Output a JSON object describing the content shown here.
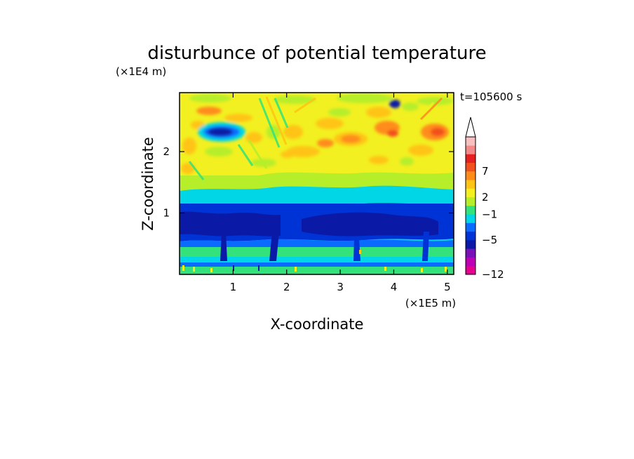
{
  "chart_data": {
    "type": "heatmap",
    "title": "disturbunce of potential temperature",
    "xlabel": "X-coordinate",
    "ylabel": "Z-coordinate",
    "x_unit": "(×1E5 m)",
    "y_unit": "(×1E4 m)",
    "time_label": "t=105600 s",
    "x_ticks": [
      "1",
      "2",
      "3",
      "4",
      "5"
    ],
    "x_tick_values": [
      1,
      2,
      3,
      4,
      5
    ],
    "y_ticks": [
      "1",
      "2"
    ],
    "y_tick_values": [
      1,
      2
    ],
    "xlim": [
      0,
      5.12
    ],
    "ylim": [
      0,
      2.96
    ],
    "colorbar": {
      "labels": [
        "−12",
        "−5",
        "−1",
        "2",
        "7"
      ],
      "colors": [
        "#e5008f",
        "#be00b4",
        "#7a10b8",
        "#0a1aa6",
        "#0033d6",
        "#0a6cff",
        "#00d6e6",
        "#33e27a",
        "#b6ee2a",
        "#f2f021",
        "#ffc414",
        "#ff8c1a",
        "#f2501e",
        "#e62020",
        "#f28a8a",
        "#f7bfbf"
      ],
      "extend": "max"
    },
    "layers": [
      {
        "z_range": [
          0,
          0.08
        ],
        "dominant": "green/cyan with yellow spots"
      },
      {
        "z_range": [
          0.08,
          0.25
        ],
        "dominant": "blue"
      },
      {
        "z_range": [
          0.25,
          0.65
        ],
        "dominant": "cyan/green"
      },
      {
        "z_range": [
          0.65,
          1.1
        ],
        "dominant": "dark blue"
      },
      {
        "z_range": [
          1.1,
          1.35
        ],
        "dominant": "cyan"
      },
      {
        "z_range": [
          1.35,
          1.6
        ],
        "dominant": "green/yellow"
      },
      {
        "z_range": [
          1.6,
          2.96
        ],
        "dominant": "yellow/orange wave pattern"
      }
    ]
  }
}
